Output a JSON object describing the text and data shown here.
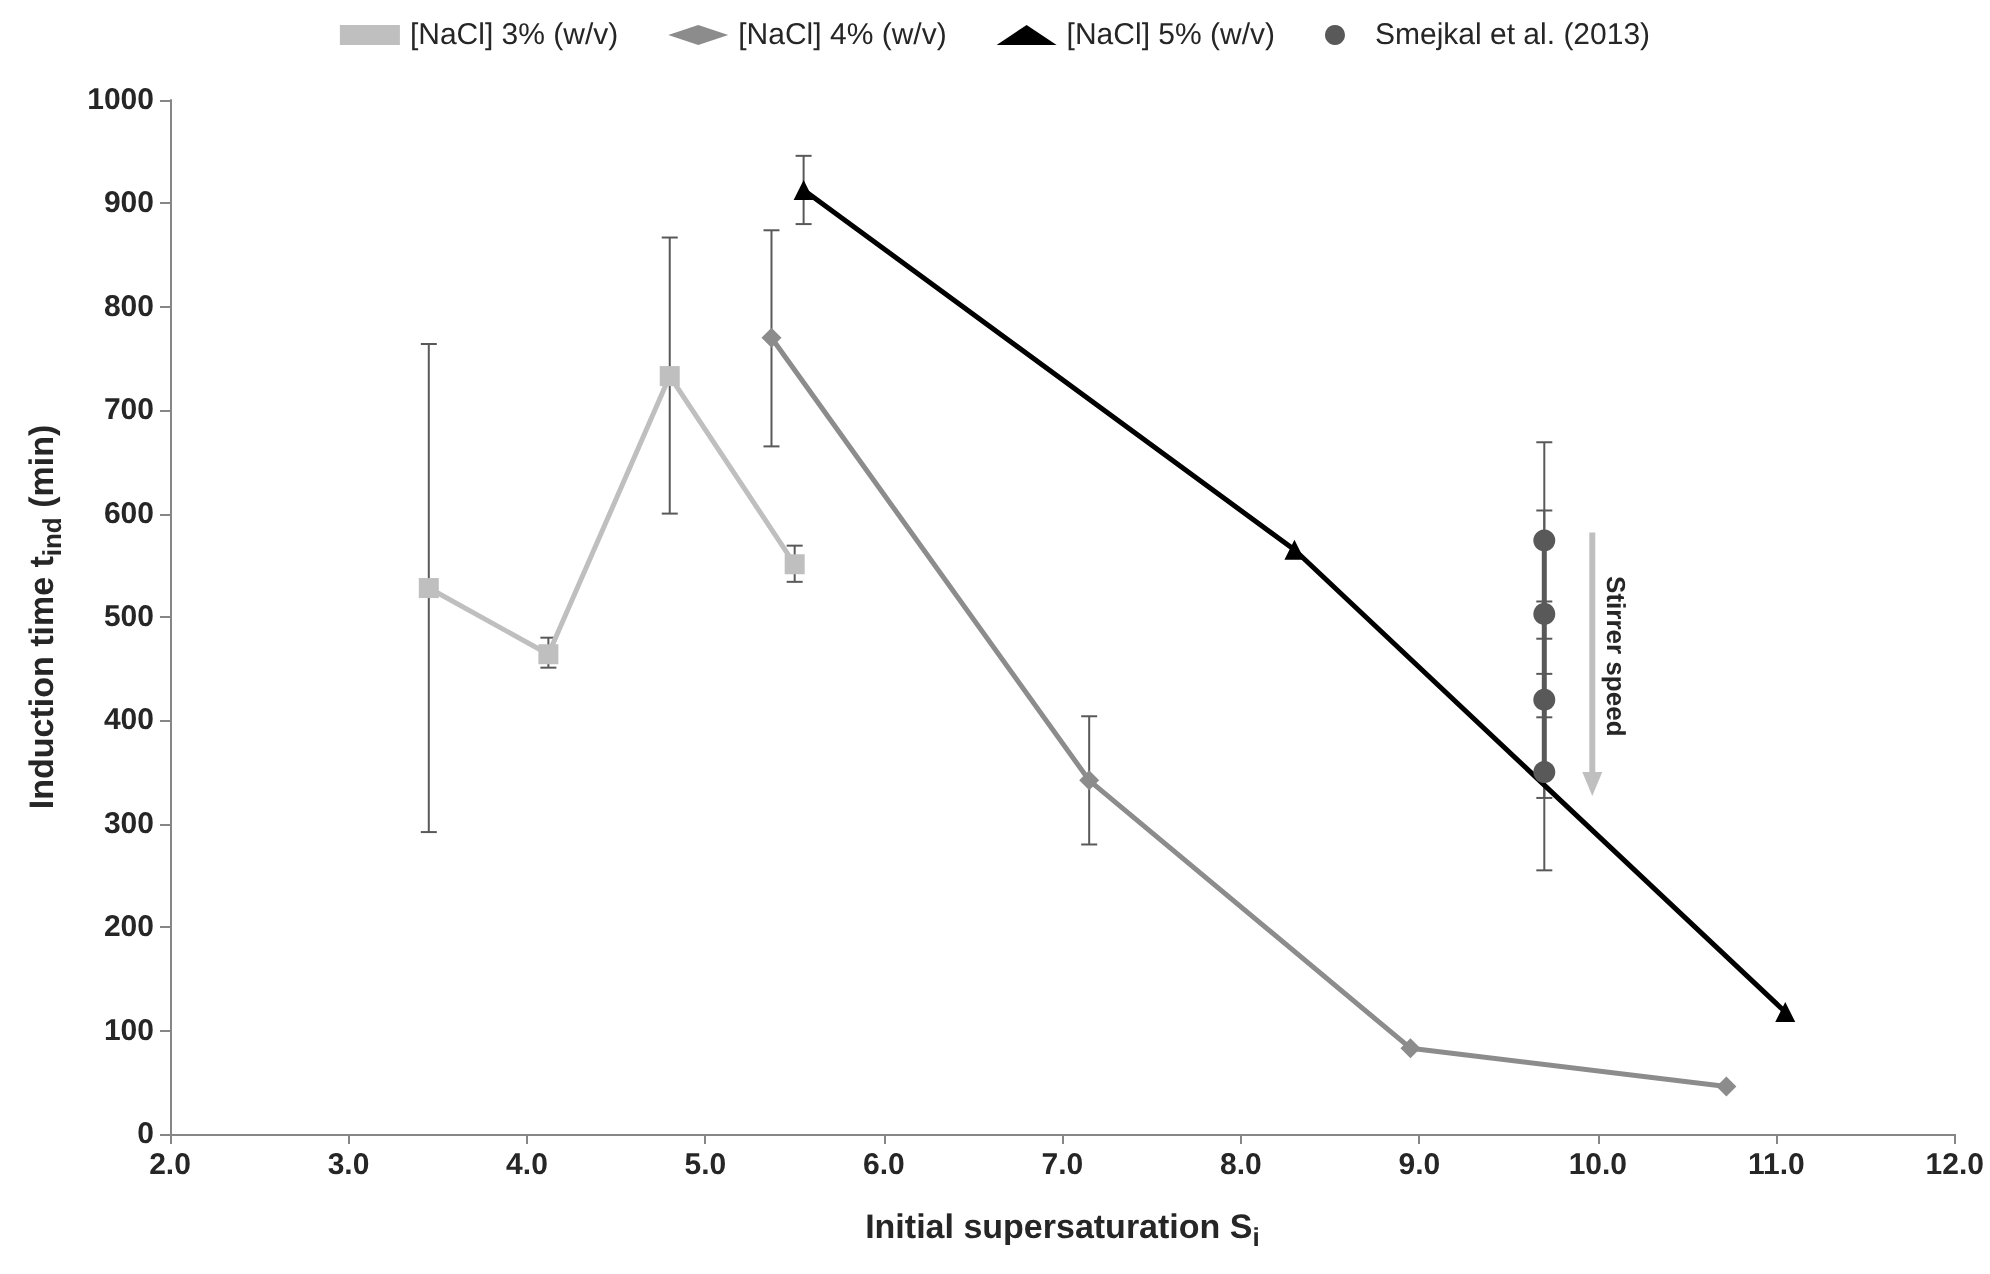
{
  "chart_data": {
    "type": "line",
    "xlabel": "Initial supersaturation S$_{i}$",
    "ylabel": "Induction time t$_{ind}$ (min)",
    "xlim": [
      2.0,
      12.0
    ],
    "xticks": [
      {
        "value": 2,
        "label": "2.0"
      },
      {
        "value": 3,
        "label": "3.0"
      },
      {
        "value": 4,
        "label": "4.0"
      },
      {
        "value": 5,
        "label": "5.0"
      },
      {
        "value": 6,
        "label": "6.0"
      },
      {
        "value": 7,
        "label": "7.0"
      },
      {
        "value": 8,
        "label": "8.0"
      },
      {
        "value": 9,
        "label": "9.0"
      },
      {
        "value": 10,
        "label": "10.0"
      },
      {
        "value": 11,
        "label": "11.0"
      },
      {
        "value": 12,
        "label": "12.0"
      }
    ],
    "ylim": [
      0,
      1000
    ],
    "yticks": [
      0,
      100,
      200,
      300,
      400,
      500,
      600,
      700,
      800,
      900,
      1000
    ],
    "grid": false,
    "legend": "top",
    "annotations": [
      "Stirrer speed"
    ],
    "series": [
      {
        "name": "[NaCl] 3% (w/v)",
        "color": "#bfbfbf",
        "marker": "square",
        "x": [
          3.45,
          4.12,
          4.8,
          5.5
        ],
        "values": [
          528,
          464,
          733,
          551
        ],
        "errors": [
          [
            292,
            764
          ],
          [
            451,
            480
          ],
          [
            600,
            867
          ],
          [
            534,
            569
          ]
        ]
      },
      {
        "name": "[NaCl] 4% (w/v)",
        "color": "#8c8c8c",
        "marker": "diamond",
        "x": [
          5.37,
          7.15,
          8.95,
          10.72
        ],
        "values": [
          770,
          342,
          83,
          46
        ],
        "errors": [
          [
            665,
            874
          ],
          [
            280,
            404
          ],
          null,
          null
        ]
      },
      {
        "name": "[NaCl] 5% (w/v)",
        "color": "#000000",
        "marker": "triangle",
        "x": [
          5.55,
          8.3,
          11.05
        ],
        "values": [
          913,
          565,
          118
        ],
        "errors": [
          [
            880,
            946
          ],
          null,
          null
        ]
      },
      {
        "name": "Smejkal et al. (2013)",
        "color": "#595959",
        "marker": "circle",
        "x": [
          9.7,
          9.7,
          9.7,
          9.7
        ],
        "values": [
          574,
          503,
          420,
          350
        ],
        "errors": [
          95,
          100,
          95,
          95
        ]
      }
    ]
  }
}
